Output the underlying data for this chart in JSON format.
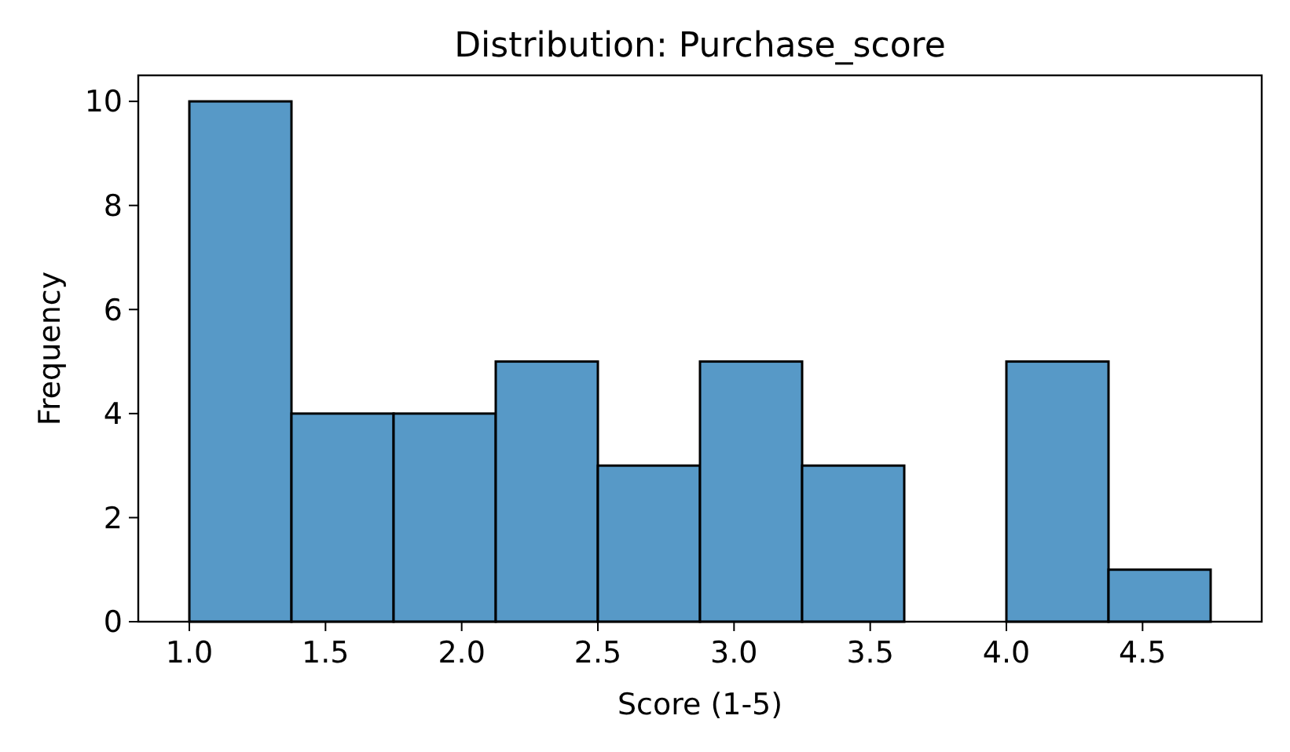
{
  "chart_data": {
    "type": "histogram",
    "title": "Distribution: Purchase_score",
    "xlabel": "Score (1-5)",
    "ylabel": "Frequency",
    "bins": [
      1,
      1.375,
      1.75,
      2.125,
      2.5,
      2.875,
      3.25,
      3.625,
      4,
      4.375,
      4.75
    ],
    "values": [
      10,
      4,
      4,
      5,
      3,
      5,
      3,
      0,
      5,
      1
    ],
    "color": "#5799c7",
    "xlim": [
      0.8125,
      4.9375
    ],
    "xticks": [
      {
        "value": 1,
        "label": "1.0"
      },
      {
        "value": 1.5,
        "label": "1.5"
      },
      {
        "value": 2,
        "label": "2.0"
      },
      {
        "value": 2.5,
        "label": "2.5"
      },
      {
        "value": 3,
        "label": "3.0"
      },
      {
        "value": 3.5,
        "label": "3.5"
      },
      {
        "value": 4,
        "label": "4.0"
      },
      {
        "value": 4.5,
        "label": "4.5"
      }
    ],
    "ylim": [
      0,
      10.5
    ],
    "yticks": [
      0,
      2,
      4,
      6,
      8,
      10
    ],
    "grid": false
  }
}
